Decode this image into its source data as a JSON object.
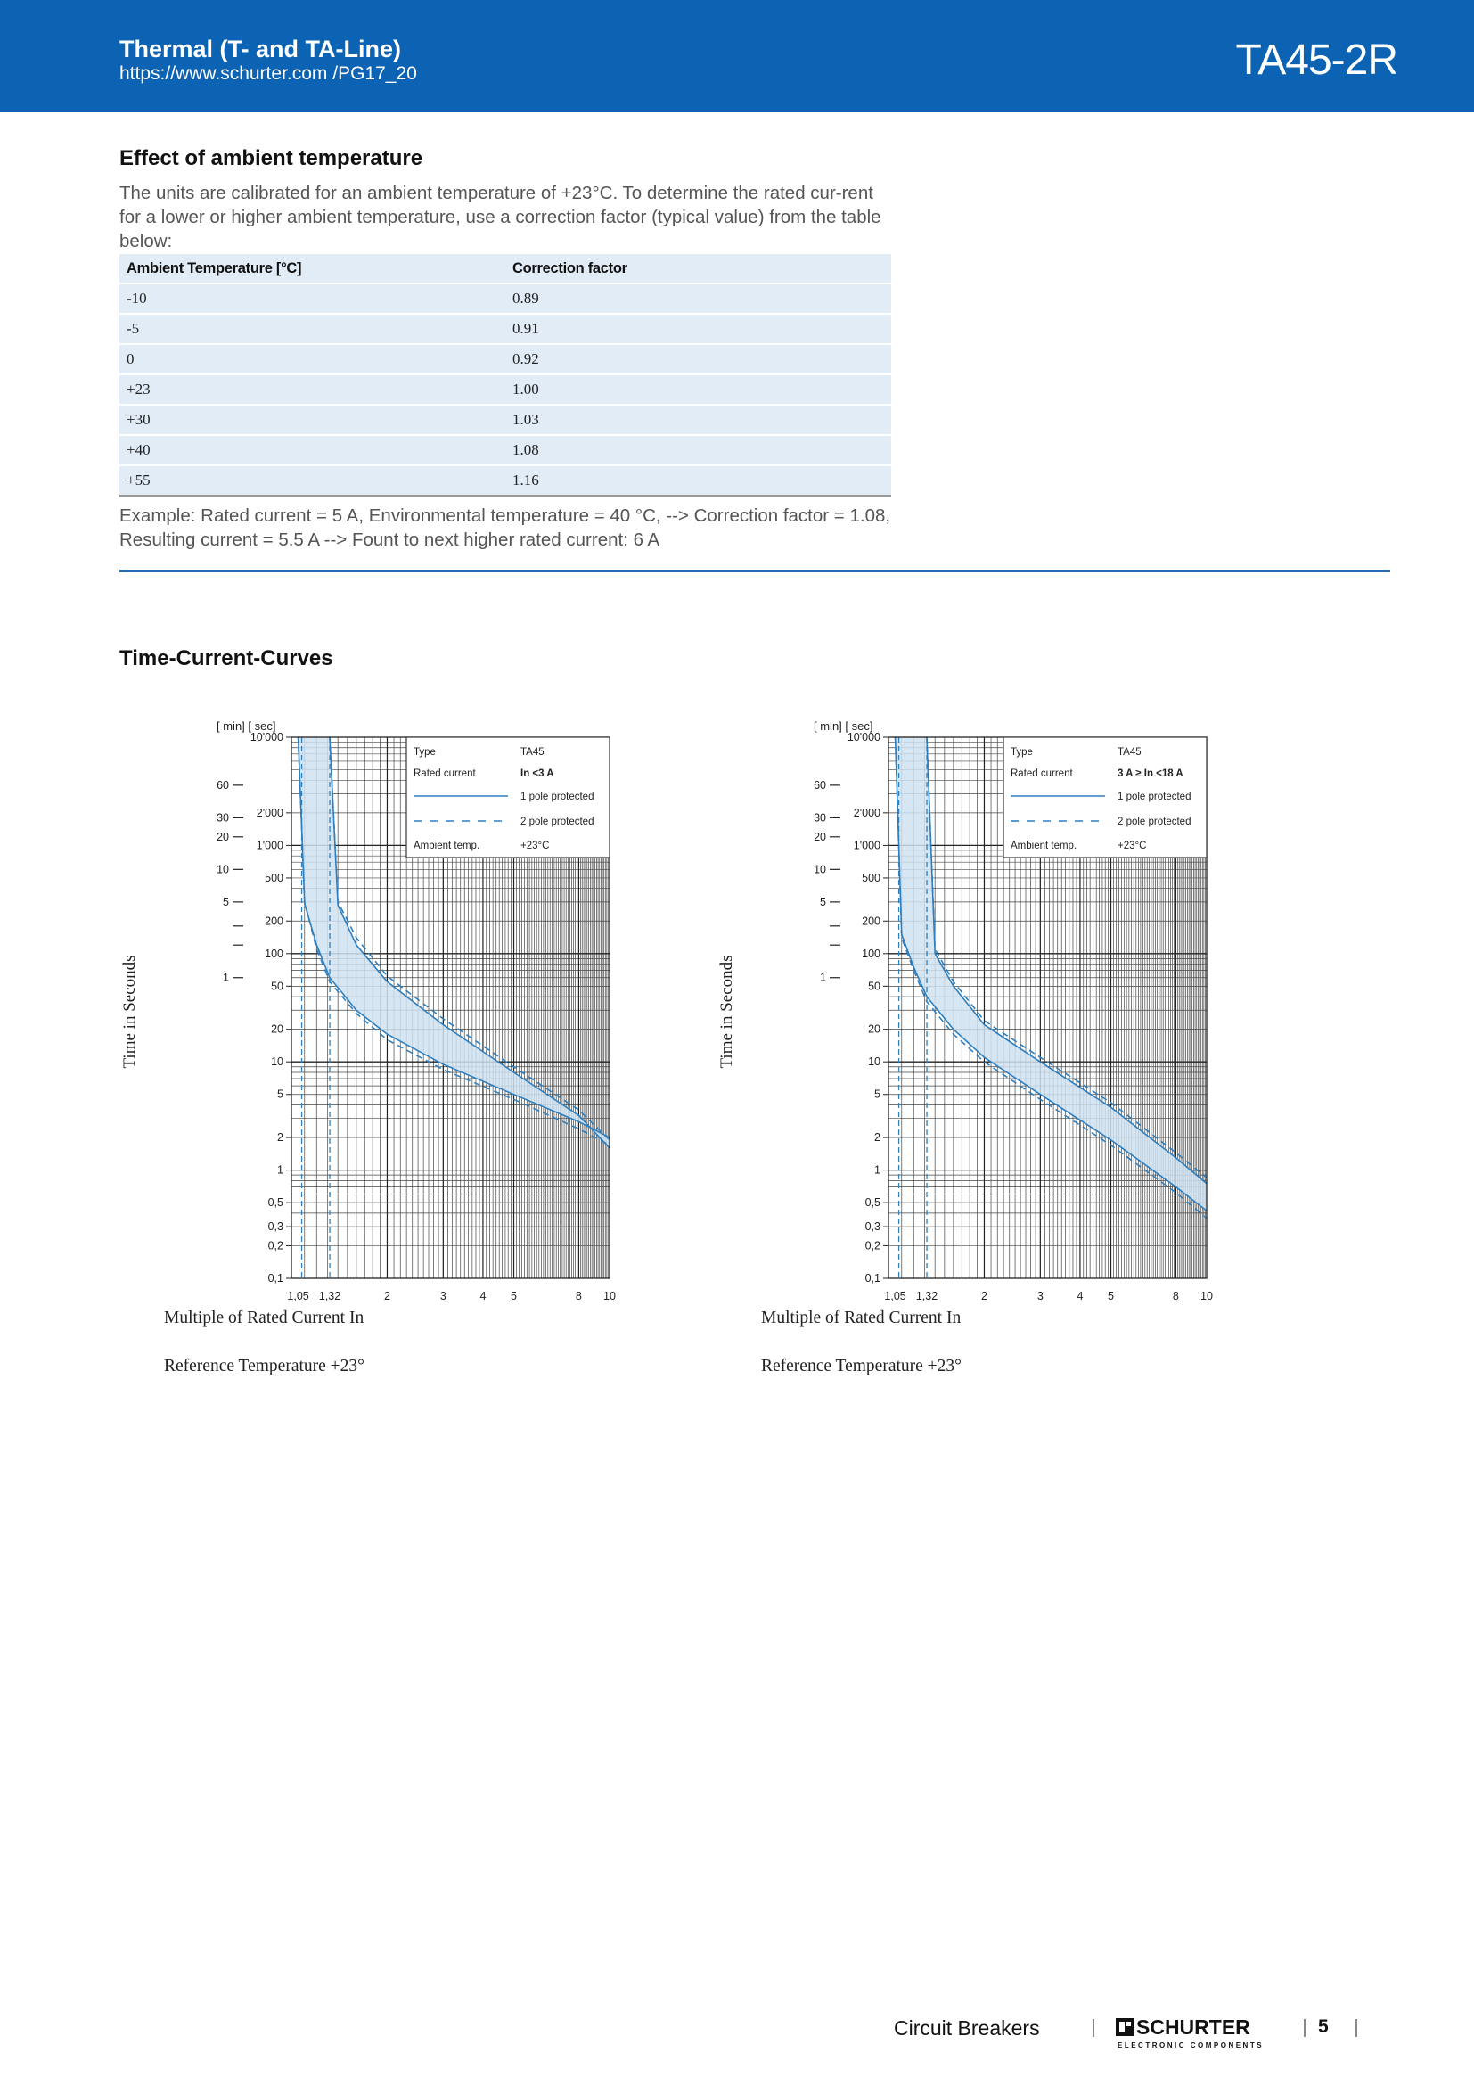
{
  "header": {
    "title": "Thermal (T- and TA-Line)",
    "url": "https://www.schurter.com /PG17_20",
    "product_code": "TA45-2R",
    "background_color": "#0d63b3"
  },
  "ambient": {
    "title": "Effect of ambient temperature",
    "intro": "The units are calibrated for an ambient temperature of +23°C. To determine the rated cur-rent for a lower or higher ambient temperature, use a correction factor (typical value) from the table below:",
    "columns": [
      "Ambient Temperature [°C]",
      "Correction factor"
    ],
    "rows": [
      [
        "-10",
        "0.89"
      ],
      [
        "-5",
        "0.91"
      ],
      [
        "0",
        "0.92"
      ],
      [
        "+23",
        "1.00"
      ],
      [
        "+30",
        "1.03"
      ],
      [
        "+40",
        "1.08"
      ],
      [
        "+55",
        "1.16"
      ]
    ],
    "example": "Example: Rated current = 5 A, Environmental temperature = 40 °C, --> Correction factor = 1.08, Resulting current = 5.5 A --> Fount to next higher rated current: 6 A"
  },
  "curves": {
    "title": "Time-Current-Curves",
    "band_color": "#cfe2f1",
    "line_color": "#2f7fbf"
  },
  "chart_data": [
    {
      "type": "line",
      "xlabel": "Multiple of Rated Current In",
      "ylabel": "Time in Seconds",
      "x_scale": "log",
      "y_scale": "log",
      "xlim": [
        1,
        10
      ],
      "ylim": [
        0.1,
        10000
      ],
      "x_ticks": [
        "1,05",
        "1,32",
        "2",
        "3",
        "4",
        "5",
        "8",
        "10"
      ],
      "y_ticks": [
        "10'000",
        "2'000",
        "1'000",
        "500",
        "200",
        "100",
        "50",
        "20",
        "10",
        "5",
        "2",
        "1",
        "0,5",
        "0,3",
        "0,2",
        "0,1"
      ],
      "min_ticks": [
        "60",
        "30",
        "20",
        "10",
        "5",
        "1"
      ],
      "axis_units": "[ min]  [ sec]",
      "legend": {
        "rows": [
          [
            "Type",
            "TA45"
          ],
          [
            "Rated current",
            "In <3 A"
          ],
          [
            "",
            "1 pole protected"
          ],
          [
            "",
            "2 pole protected"
          ],
          [
            "Ambient temp.",
            "+23°C"
          ]
        ],
        "position": "top-right"
      },
      "series": [
        {
          "name": "1 pole protected",
          "x": [
            1.05,
            1.1,
            1.2,
            1.32,
            1.6,
            2,
            3,
            5,
            8,
            10
          ],
          "y": [
            10000,
            290,
            120,
            60,
            30,
            18,
            9.5,
            5,
            2.8,
            2
          ]
        },
        {
          "name": "1 pole protected",
          "x": [
            1.32,
            1.4,
            1.6,
            2,
            3,
            5,
            8,
            10
          ],
          "y": [
            10000,
            280,
            120,
            55,
            22,
            8,
            3.2,
            1.6
          ]
        },
        {
          "name": "2 pole protected",
          "x": [
            1.05,
            1.1,
            1.2,
            1.32,
            1.6,
            2,
            3,
            5,
            8,
            10
          ],
          "y": [
            10000,
            300,
            110,
            55,
            28,
            16,
            8.5,
            4.5,
            2.4,
            1.7
          ]
        },
        {
          "name": "2 pole protected",
          "x": [
            1.32,
            1.4,
            1.6,
            2,
            3,
            5,
            8,
            10
          ],
          "y": [
            10000,
            300,
            140,
            62,
            25,
            9,
            3.6,
            1.9
          ]
        }
      ],
      "caption": "Reference Temperature +23°"
    },
    {
      "type": "line",
      "xlabel": "Multiple of Rated Current In",
      "ylabel": "Time in Seconds",
      "x_scale": "log",
      "y_scale": "log",
      "xlim": [
        1,
        10
      ],
      "ylim": [
        0.1,
        10000
      ],
      "x_ticks": [
        "1,05",
        "1,32",
        "2",
        "3",
        "4",
        "5",
        "8",
        "10"
      ],
      "y_ticks": [
        "10'000",
        "2'000",
        "1'000",
        "500",
        "200",
        "100",
        "50",
        "20",
        "10",
        "5",
        "2",
        "1",
        "0,5",
        "0,3",
        "0,2",
        "0,1"
      ],
      "min_ticks": [
        "60",
        "30",
        "20",
        "10",
        "5",
        "1"
      ],
      "axis_units": "[ min]  [ sec]",
      "legend": {
        "rows": [
          [
            "Type",
            "TA45"
          ],
          [
            "Rated current",
            "3 A ≥ In <18 A"
          ],
          [
            "",
            "1 pole protected"
          ],
          [
            "",
            "2 pole protected"
          ],
          [
            "Ambient temp.",
            "+23°C"
          ]
        ],
        "position": "top-right"
      },
      "series": [
        {
          "name": "1 pole protected",
          "x": [
            1.05,
            1.1,
            1.2,
            1.32,
            1.6,
            2,
            3,
            5,
            8,
            10
          ],
          "y": [
            10000,
            150,
            75,
            40,
            20,
            11,
            5,
            1.9,
            0.7,
            0.42
          ]
        },
        {
          "name": "1 pole protected",
          "x": [
            1.32,
            1.4,
            1.6,
            2,
            3,
            5,
            8,
            10
          ],
          "y": [
            10000,
            100,
            50,
            22,
            10,
            3.8,
            1.3,
            0.75
          ]
        },
        {
          "name": "2 pole protected",
          "x": [
            1.05,
            1.1,
            1.2,
            1.32,
            1.6,
            2,
            3,
            5,
            8,
            10
          ],
          "y": [
            10000,
            140,
            70,
            36,
            18,
            10,
            4.5,
            1.7,
            0.62,
            0.36
          ]
        },
        {
          "name": "2 pole protected",
          "x": [
            1.32,
            1.4,
            1.6,
            2,
            3,
            5,
            8,
            10
          ],
          "y": [
            10000,
            110,
            55,
            24,
            11,
            4.2,
            1.45,
            0.85
          ]
        }
      ],
      "caption": "Reference Temperature +23°"
    }
  ],
  "footer": {
    "label": "Circuit Breakers",
    "brand": "SCHURTER",
    "brand_tagline": "ELECTRONIC COMPONENTS",
    "page_number": "5"
  }
}
